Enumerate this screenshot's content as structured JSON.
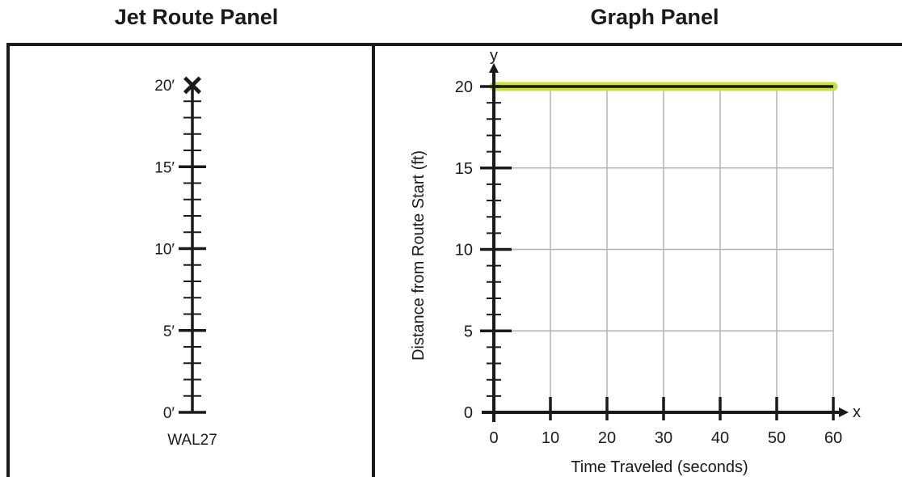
{
  "panels": {
    "left_title": "Jet Route Panel",
    "right_title": "Graph Panel"
  },
  "route": {
    "label": "WAL27",
    "min": 0,
    "max": 20,
    "major_step": 5,
    "minor_step": 1,
    "marker_position": 20,
    "marker_symbol": "×",
    "tick_labels": [
      "0′",
      "5′",
      "10′",
      "15′",
      "20′"
    ]
  },
  "chart_data": {
    "type": "line",
    "xlabel": "Time Traveled (seconds)",
    "ylabel": "Distance from Route Start (ft)",
    "x_axis_letter": "x",
    "y_axis_letter": "y",
    "xlim": [
      0,
      60
    ],
    "ylim": [
      0,
      20
    ],
    "x_ticks": [
      0,
      10,
      20,
      30,
      40,
      50,
      60
    ],
    "y_ticks": [
      0,
      5,
      10,
      15,
      20
    ],
    "y_minor_step": 1,
    "grid": true,
    "series": [
      {
        "color": "#1a1a1a",
        "highlight_color": "#c8e23a",
        "points": [
          [
            0,
            20
          ],
          [
            60,
            20
          ]
        ]
      }
    ]
  }
}
